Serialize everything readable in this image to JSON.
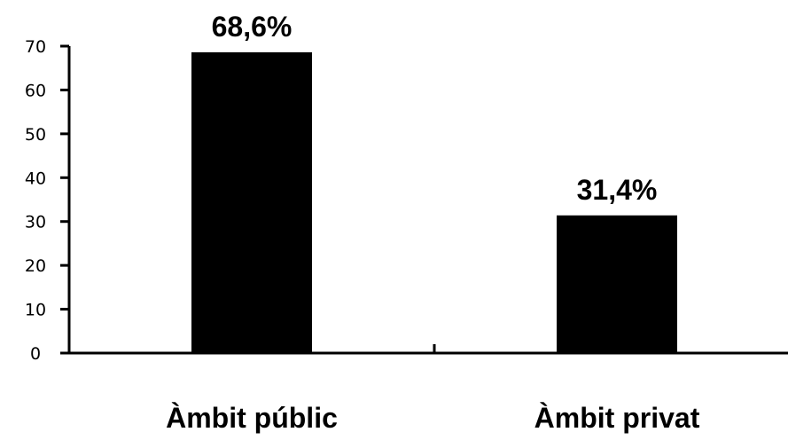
{
  "chart_data": {
    "type": "bar",
    "categories": [
      "Àmbit públic",
      "Àmbit privat"
    ],
    "values": [
      68.6,
      31.4
    ],
    "data_labels": [
      "68,6%",
      "31,4%"
    ],
    "y_ticks": [
      "0",
      "10",
      "20",
      "30",
      "40",
      "50",
      "60",
      "70"
    ],
    "ylim": [
      0,
      70
    ],
    "grid": false,
    "legend": "none",
    "bar_color": "#000000"
  }
}
